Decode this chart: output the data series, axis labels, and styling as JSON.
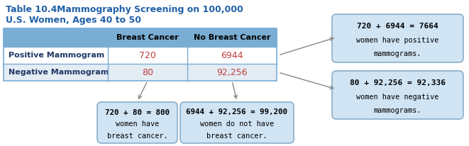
{
  "title_prefix": "Table 10.4",
  "title_main": "Mammography Screening on 100,000",
  "title_line2": "U.S. Women, Ages 40 to 50",
  "title_color": "#2060A8",
  "header_bg": "#7AADD4",
  "row1_bg": "#FFFFFF",
  "row2_bg": "#E4ECF4",
  "header_label1": "Breast Cancer",
  "header_label2": "No Breast Cancer",
  "row1_label": "Positive Mammogram",
  "row2_label": "Negative Mammogram",
  "val_pos_cancer": "720",
  "val_pos_no_cancer": "6944",
  "val_neg_cancer": "80",
  "val_neg_no_cancer": "92,256",
  "bubble_bg": "#D0E4F4",
  "bubble_border": "#8AAEC8",
  "bubble_top_text_line1": "720 + 6944 = 7664",
  "bubble_top_text_line2": "women have positive",
  "bubble_top_text_line3": "mammograms.",
  "bubble_bot_text_line1": "80 + 92,256 = 92,336",
  "bubble_bot_text_line2": "women have negative",
  "bubble_bot_text_line3": "mammograms.",
  "bubble_bl_text_line1": "720 + 80 = 800",
  "bubble_bl_text_line2": "women have",
  "bubble_bl_text_line3": "breast cancer.",
  "bubble_br_text_line1": "6944 + 92,256 = 99,200",
  "bubble_br_text_line2": "women do not have",
  "bubble_br_text_line3": "breast cancer.",
  "data_color": "#C04040",
  "label_color": "#1F3864",
  "table_border": "#7AADD4",
  "arrow_color": "#888888"
}
